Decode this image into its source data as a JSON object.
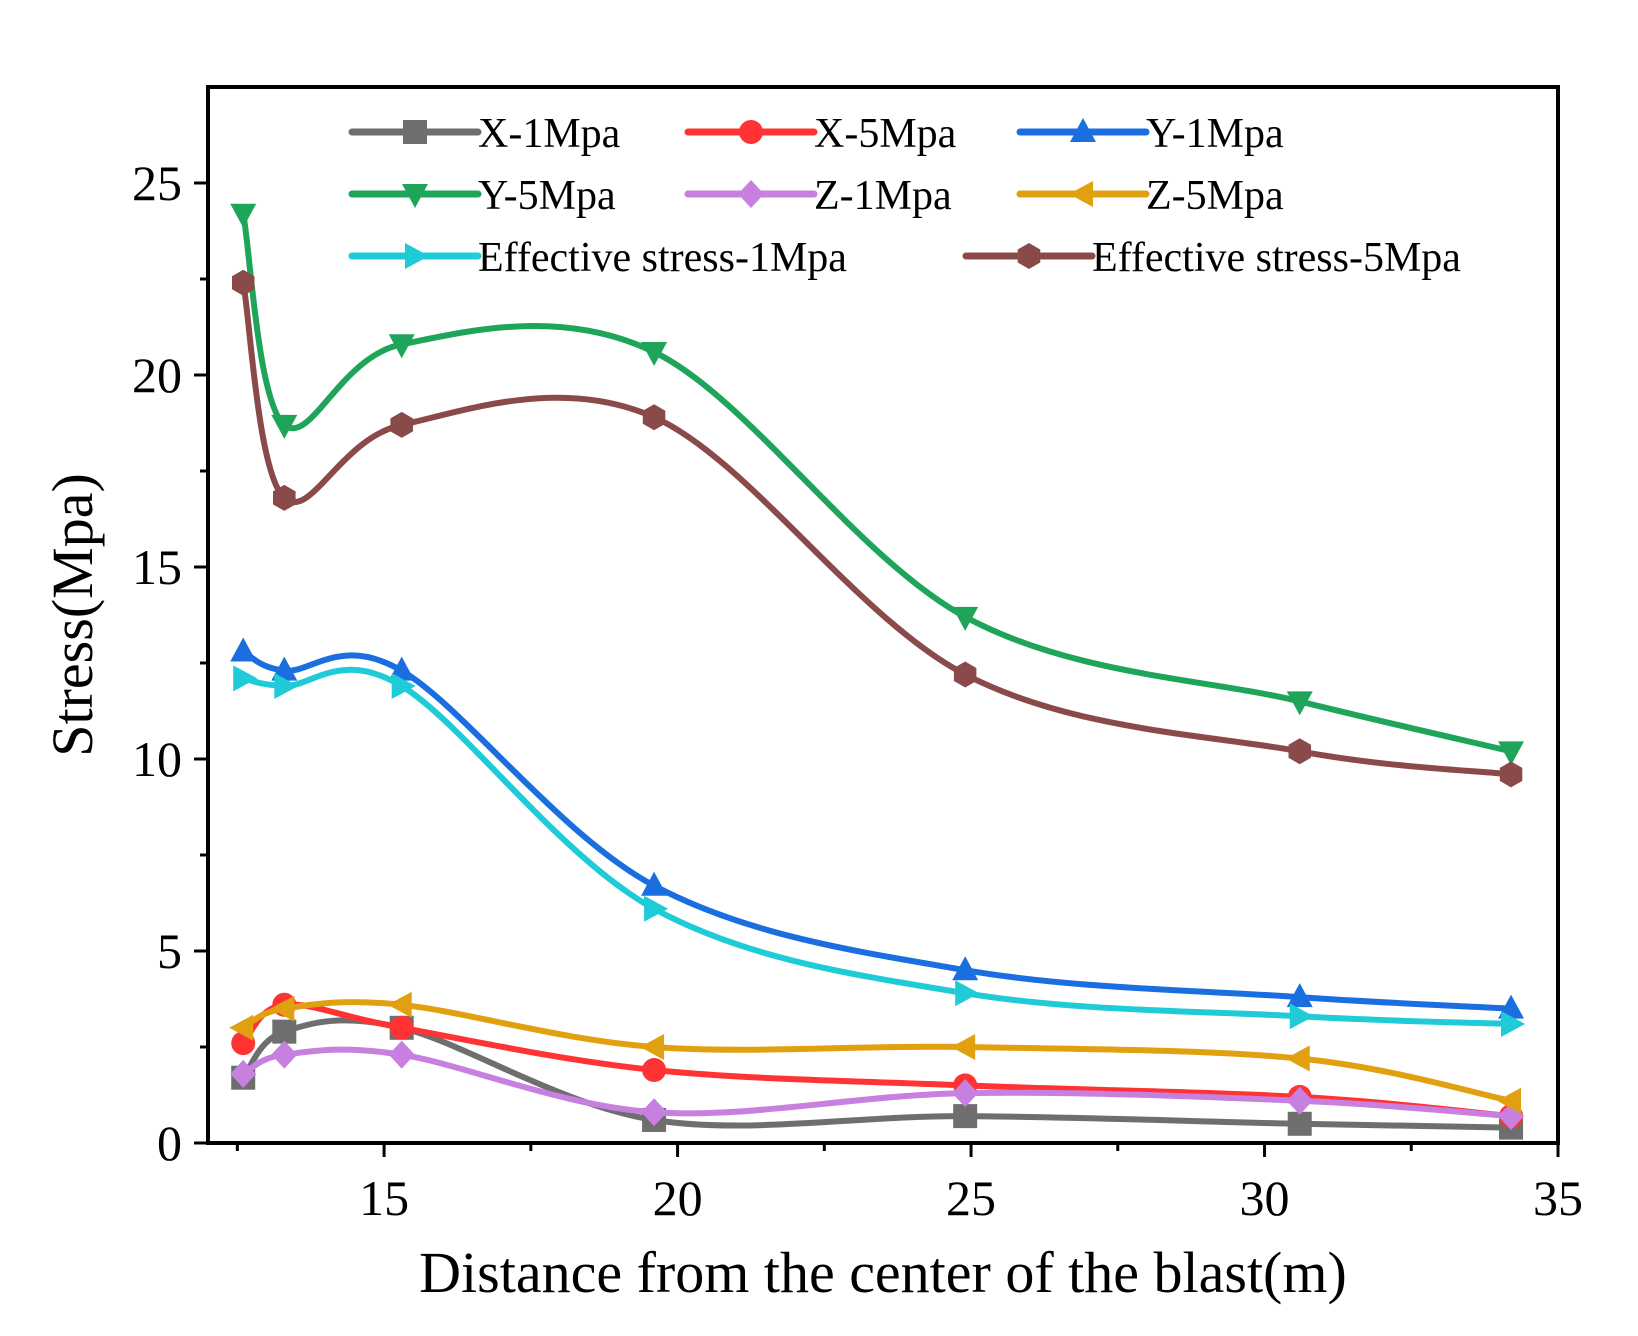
{
  "chart_data": {
    "type": "line",
    "title": "",
    "xlabel": "Distance from the center of the blast(m)",
    "ylabel": "Stress(Mpa)",
    "xlim": [
      12,
      35
    ],
    "ylim": [
      0,
      27.5
    ],
    "xticks": [
      15,
      20,
      25,
      30,
      35
    ],
    "yticks": [
      0,
      5,
      10,
      15,
      20,
      25
    ],
    "x": [
      12.6,
      13.3,
      15.3,
      19.6,
      24.9,
      30.6,
      34.2
    ],
    "series": [
      {
        "name": "X-1Mpa",
        "color": "#6e6e6e",
        "marker": "square",
        "values": [
          1.7,
          2.9,
          3.0,
          0.6,
          0.7,
          0.5,
          0.4
        ]
      },
      {
        "name": "X-5Mpa",
        "color": "#ff3333",
        "marker": "circle",
        "values": [
          2.6,
          3.6,
          3.0,
          1.9,
          1.5,
          1.2,
          0.7
        ]
      },
      {
        "name": "Y-1Mpa",
        "color": "#1a6ee0",
        "marker": "triangle-up",
        "values": [
          12.8,
          12.3,
          12.3,
          6.7,
          4.5,
          3.8,
          3.5
        ]
      },
      {
        "name": "Y-5Mpa",
        "color": "#1ea55a",
        "marker": "triangle-down",
        "values": [
          24.2,
          18.7,
          20.8,
          20.6,
          13.7,
          11.5,
          10.2
        ]
      },
      {
        "name": "Z-1Mpa",
        "color": "#c77fe0",
        "marker": "diamond",
        "values": [
          1.8,
          2.3,
          2.3,
          0.8,
          1.3,
          1.1,
          0.7
        ]
      },
      {
        "name": "Z-5Mpa",
        "color": "#e0a010",
        "marker": "triangle-left",
        "values": [
          3.0,
          3.5,
          3.6,
          2.5,
          2.5,
          2.2,
          1.1
        ]
      },
      {
        "name": "Effective stress-1Mpa",
        "color": "#1ecbd6",
        "marker": "triangle-right",
        "values": [
          12.1,
          11.9,
          11.9,
          6.1,
          3.9,
          3.3,
          3.1
        ]
      },
      {
        "name": "Effective stress-5Mpa",
        "color": "#8b4a4a",
        "marker": "hexagon",
        "values": [
          22.4,
          16.8,
          18.7,
          18.9,
          12.2,
          10.2,
          9.6
        ]
      }
    ],
    "legend_position": "top"
  }
}
